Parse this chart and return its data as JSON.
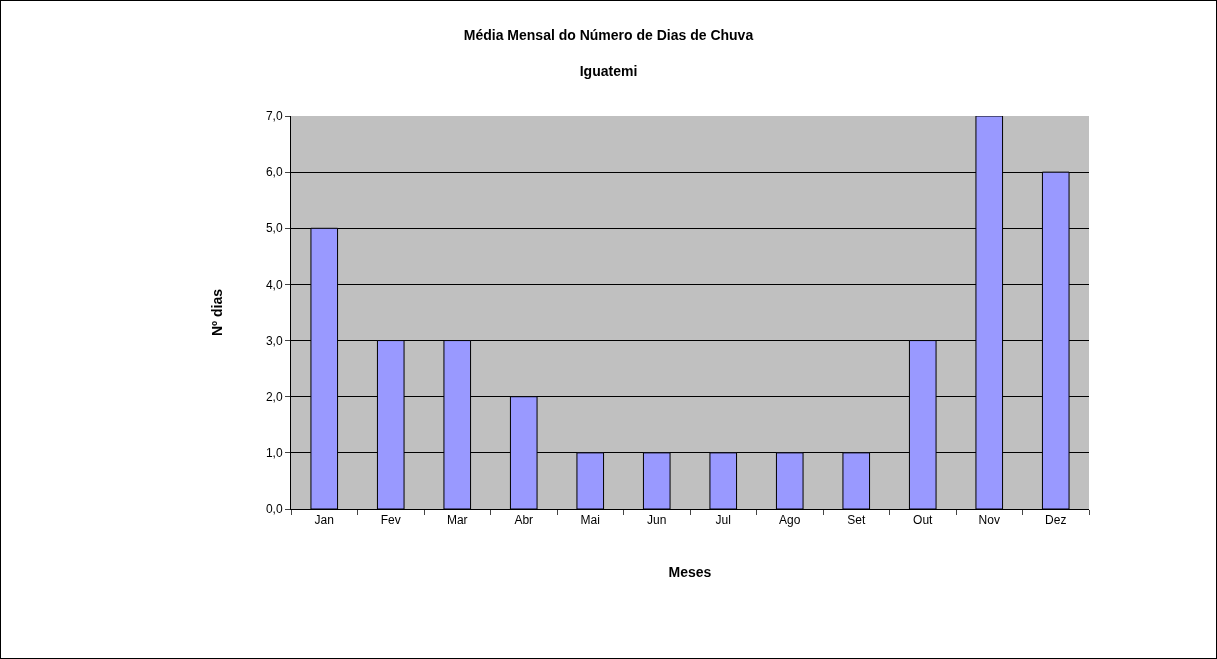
{
  "chart_data": {
    "type": "bar",
    "title": "Média Mensal do Número de Dias de Chuva",
    "subtitle": "Iguatemi",
    "xlabel": "Meses",
    "ylabel": "Nº dias",
    "categories": [
      "Jan",
      "Fev",
      "Mar",
      "Abr",
      "Mai",
      "Jun",
      "Jul",
      "Ago",
      "Set",
      "Out",
      "Nov",
      "Dez"
    ],
    "values": [
      5,
      3,
      3,
      2,
      1,
      1,
      1,
      1,
      1,
      3,
      7,
      6
    ],
    "color": "#9999ff",
    "ylim": [
      0,
      7
    ],
    "yticks": [
      {
        "value": 0,
        "label": "0,0"
      },
      {
        "value": 1,
        "label": "1,0"
      },
      {
        "value": 2,
        "label": "2,0"
      },
      {
        "value": 3,
        "label": "3,0"
      },
      {
        "value": 4,
        "label": "4,0"
      },
      {
        "value": 5,
        "label": "5,0"
      },
      {
        "value": 6,
        "label": "6,0"
      },
      {
        "value": 7,
        "label": "7,0"
      }
    ],
    "grid": "y",
    "legend": false
  }
}
